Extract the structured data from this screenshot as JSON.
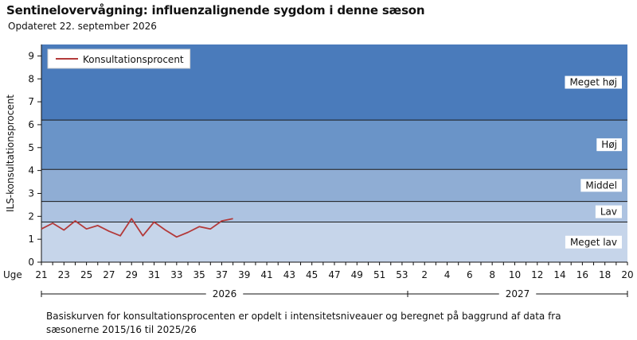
{
  "header": {
    "title": "Sentinelovervågning: influenzalignende sygdom i denne sæson",
    "subtitle": "Opdateret 22. september 2026"
  },
  "footnote": "Basiskurven for konsultationsprocenten er opdelt i intensitetsniveauer og beregnet på baggrund af data fra sæsonerne  2015/16  til 2025/26",
  "chart_data": {
    "type": "line",
    "ylabel": "ILS-konsultationsprocent",
    "ylim": [
      0,
      9.5
    ],
    "yticks": [
      0,
      1,
      2,
      3,
      4,
      5,
      6,
      7,
      8,
      9
    ],
    "x_axis_prefix": "Uge",
    "x_tick_labels": [
      "21",
      "23",
      "25",
      "27",
      "29",
      "31",
      "33",
      "35",
      "37",
      "39",
      "41",
      "43",
      "45",
      "47",
      "49",
      "51",
      "53",
      "2",
      "4",
      "6",
      "8",
      "10",
      "12",
      "14",
      "16",
      "18",
      "20"
    ],
    "x_categories": [
      "21",
      "22",
      "23",
      "24",
      "25",
      "26",
      "27",
      "28",
      "29",
      "30",
      "31",
      "32",
      "33",
      "34",
      "35",
      "36",
      "37",
      "38",
      "39",
      "40",
      "41",
      "42",
      "43",
      "44",
      "45",
      "46",
      "47",
      "48",
      "49",
      "50",
      "51",
      "52",
      "53",
      "1",
      "2",
      "3",
      "4",
      "5",
      "6",
      "7",
      "8",
      "9",
      "10",
      "11",
      "12",
      "13",
      "14",
      "15",
      "16",
      "17",
      "18",
      "19",
      "20"
    ],
    "year_groups": [
      {
        "label": "2026",
        "from": "21",
        "to": "53"
      },
      {
        "label": "2027",
        "from": "1",
        "to": "20"
      }
    ],
    "bands": [
      {
        "name": "Meget lav",
        "from": 0,
        "to": 1.75,
        "color": "#c6d5ea"
      },
      {
        "name": "Lav",
        "from": 1.75,
        "to": 2.65,
        "color": "#adc3e1"
      },
      {
        "name": "Middel",
        "from": 2.65,
        "to": 4.05,
        "color": "#8fadd4"
      },
      {
        "name": "Høj",
        "from": 4.05,
        "to": 6.2,
        "color": "#6a94c8"
      },
      {
        "name": "Meget høj",
        "from": 6.2,
        "to": 9.5,
        "color": "#4a7bbb"
      }
    ],
    "series": [
      {
        "name": "Konsultationsprocent",
        "color": "#b33a3a",
        "x": [
          "21",
          "22",
          "23",
          "24",
          "25",
          "26",
          "27",
          "28",
          "29",
          "30",
          "31",
          "32",
          "33",
          "34",
          "35",
          "36",
          "37",
          "38"
        ],
        "values": [
          1.45,
          1.7,
          1.4,
          1.8,
          1.45,
          1.6,
          1.35,
          1.15,
          1.9,
          1.15,
          1.75,
          1.4,
          1.1,
          1.3,
          1.55,
          1.45,
          1.8,
          1.9
        ]
      }
    ],
    "legend_position": "top-left"
  }
}
